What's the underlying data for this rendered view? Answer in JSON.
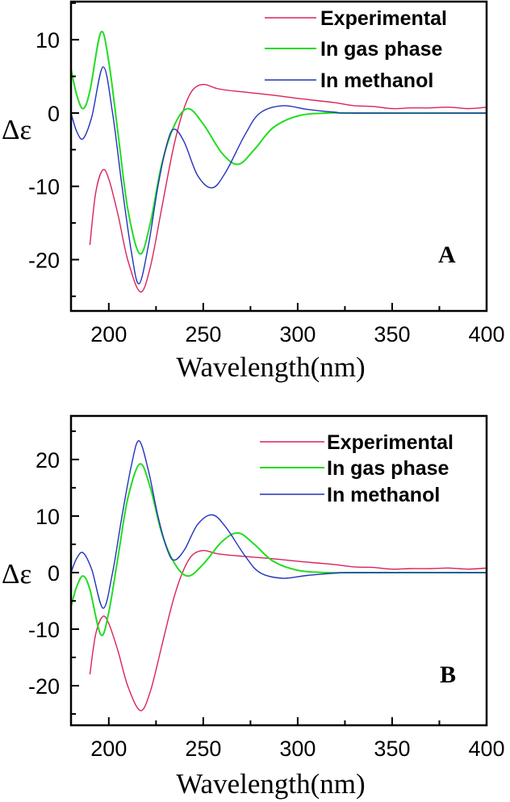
{
  "chart_data": [
    {
      "type": "line",
      "panel_label": "A",
      "xlabel": "Wavelength(nm)",
      "ylabel": "Δε",
      "xlim": [
        180,
        400
      ],
      "ylim": [
        -27,
        15.2
      ],
      "xticks": [
        200,
        250,
        300,
        350,
        400
      ],
      "yticks": [
        -20,
        -10,
        0,
        10
      ],
      "grid": false,
      "legend_placement": "top-right",
      "series": [
        {
          "name": "Experimental",
          "color": "#d8245a",
          "x": [
            190,
            193,
            196.7,
            200,
            205,
            210,
            216.7,
            222,
            228,
            234,
            239,
            244,
            250,
            258,
            270,
            285,
            300,
            310,
            320,
            330,
            340,
            350,
            360,
            370,
            380,
            390,
            400
          ],
          "y": [
            -18,
            -11,
            -7.8,
            -9,
            -14,
            -20,
            -24.4,
            -21,
            -13,
            -5,
            0,
            3,
            3.9,
            3.3,
            2.9,
            2.5,
            2,
            1.7,
            1.4,
            1,
            0.9,
            0.6,
            0.7,
            0.7,
            0.8,
            0.6,
            0.8
          ]
        },
        {
          "name": "In gas phase",
          "color": "#22dd22",
          "x": [
            180,
            183,
            186.4,
            190,
            195.8,
            200,
            205,
            210,
            216.4,
            222,
            228,
            235,
            242,
            250,
            260,
            268.5,
            277,
            287,
            300,
            315,
            330,
            400
          ],
          "y": [
            6,
            2.5,
            0.6,
            3,
            11,
            7,
            -3,
            -13,
            -19.2,
            -15,
            -7,
            -1.5,
            0.6,
            -1.5,
            -5.5,
            -7,
            -5,
            -2,
            -0.4,
            0,
            0,
            0
          ]
        },
        {
          "name": "In methanol",
          "color": "#2233bb",
          "x": [
            180,
            183,
            186.4,
            191,
            197,
            202,
            207,
            212,
            216,
            221,
            226,
            231,
            234.7,
            240,
            247,
            254.8,
            262,
            272,
            280,
            292,
            305,
            320,
            330,
            400
          ],
          "y": [
            0,
            -2.5,
            -3.5,
            -0.5,
            6.3,
            0,
            -10,
            -19,
            -23.3,
            -18,
            -10,
            -4,
            -2.2,
            -4,
            -8.5,
            -10.2,
            -8,
            -3,
            0,
            1,
            0.5,
            0.1,
            0,
            0
          ]
        }
      ]
    },
    {
      "type": "line",
      "panel_label": "B",
      "xlabel": "Wavelength(nm)",
      "ylabel": "Δε",
      "xlim": [
        180,
        400
      ],
      "ylim": [
        -27,
        27.7
      ],
      "xticks": [
        200,
        250,
        300,
        350,
        400
      ],
      "yticks": [
        -20,
        -10,
        0,
        10,
        20
      ],
      "grid": false,
      "legend_placement": "top-right",
      "series": [
        {
          "name": "Experimental",
          "color": "#d8245a",
          "x": [
            190,
            193,
            196.7,
            200,
            205,
            210,
            216.7,
            222,
            228,
            234,
            239,
            244,
            250,
            258,
            270,
            285,
            300,
            310,
            320,
            330,
            340,
            350,
            360,
            370,
            380,
            390,
            400
          ],
          "y": [
            -18,
            -11,
            -7.8,
            -9,
            -14,
            -20,
            -24.4,
            -21,
            -13,
            -5,
            0,
            3,
            3.9,
            3.3,
            2.9,
            2.5,
            2,
            1.7,
            1.4,
            1,
            0.9,
            0.6,
            0.7,
            0.7,
            0.8,
            0.6,
            0.8
          ]
        },
        {
          "name": "In gas phase",
          "color": "#22dd22",
          "x": [
            180,
            183,
            186.4,
            190,
            195.8,
            200,
            205,
            210,
            216.4,
            222,
            228,
            235,
            242,
            250,
            260,
            268.5,
            277,
            287,
            300,
            315,
            330,
            400
          ],
          "y": [
            -6,
            -2.5,
            -0.6,
            -3,
            -11,
            -7,
            3,
            13,
            19.2,
            15,
            7,
            1.5,
            -0.6,
            1.5,
            5.5,
            7,
            5,
            2,
            0.4,
            0,
            0,
            0
          ]
        },
        {
          "name": "In methanol",
          "color": "#2233bb",
          "x": [
            180,
            183,
            186.4,
            191,
            197,
            202,
            207,
            212,
            216,
            221,
            226,
            231,
            234.7,
            240,
            247,
            254.8,
            262,
            272,
            280,
            292,
            305,
            320,
            330,
            400
          ],
          "y": [
            0,
            2.5,
            3.5,
            0.5,
            -6.3,
            0,
            10,
            19,
            23.3,
            18,
            10,
            4,
            2.2,
            4,
            8.5,
            10.2,
            8,
            3,
            0,
            -1,
            -0.5,
            -0.1,
            0,
            0
          ]
        }
      ]
    }
  ]
}
